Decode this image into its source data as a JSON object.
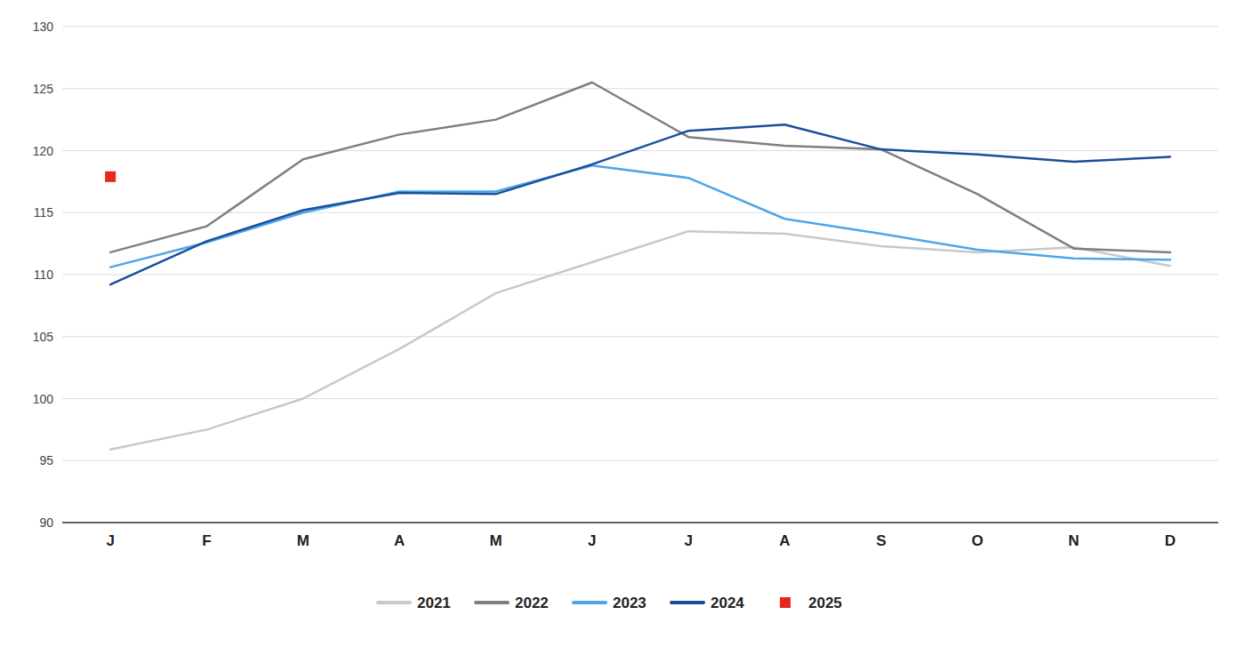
{
  "chart_data": {
    "type": "line",
    "categories": [
      "J",
      "F",
      "M",
      "A",
      "M",
      "J",
      "J",
      "A",
      "S",
      "O",
      "N",
      "D"
    ],
    "series": [
      {
        "name": "2021",
        "type": "line",
        "color": "#c8c8c8",
        "values": [
          95.9,
          97.5,
          100.0,
          104.0,
          108.5,
          111.0,
          113.5,
          113.3,
          112.3,
          111.8,
          112.2,
          110.7
        ]
      },
      {
        "name": "2022",
        "type": "line",
        "color": "#7f7f7f",
        "values": [
          111.8,
          113.9,
          119.3,
          121.3,
          122.5,
          125.5,
          121.1,
          120.4,
          120.1,
          116.5,
          112.1,
          111.8
        ]
      },
      {
        "name": "2023",
        "type": "line",
        "color": "#4da6e8",
        "values": [
          110.6,
          112.6,
          115.0,
          116.7,
          116.7,
          118.8,
          117.8,
          114.5,
          113.3,
          112.0,
          111.3,
          111.2
        ]
      },
      {
        "name": "2024",
        "type": "line",
        "color": "#1a4f9c",
        "values": [
          109.2,
          112.7,
          115.2,
          116.6,
          116.5,
          118.9,
          121.6,
          122.1,
          120.1,
          119.7,
          119.1,
          119.5
        ]
      },
      {
        "name": "2025",
        "type": "scatter",
        "marker": "square",
        "color": "#e8261a",
        "values": [
          117.9,
          null,
          null,
          null,
          null,
          null,
          null,
          null,
          null,
          null,
          null,
          null
        ]
      }
    ],
    "ylim": [
      90,
      130
    ],
    "yticks": [
      90,
      95,
      100,
      105,
      110,
      115,
      120,
      125,
      130
    ],
    "grid": true,
    "legend": "bottom"
  }
}
